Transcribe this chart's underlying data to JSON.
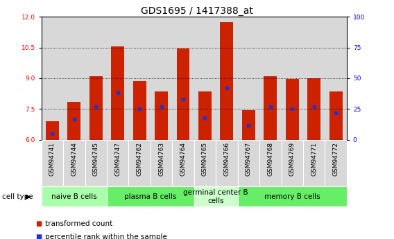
{
  "title": "GDS1695 / 1417388_at",
  "samples": [
    "GSM94741",
    "GSM94744",
    "GSM94745",
    "GSM94747",
    "GSM94762",
    "GSM94763",
    "GSM94764",
    "GSM94765",
    "GSM94766",
    "GSM94767",
    "GSM94768",
    "GSM94769",
    "GSM94771",
    "GSM94772"
  ],
  "transformed_count": [
    6.9,
    7.85,
    9.1,
    10.55,
    8.85,
    8.35,
    10.45,
    8.35,
    11.75,
    7.45,
    9.1,
    8.95,
    9.0,
    8.35
  ],
  "percentile_rank": [
    5,
    17,
    27,
    38,
    25,
    27,
    33,
    18,
    42,
    12,
    27,
    25,
    27,
    22
  ],
  "ylim_left": [
    6,
    12
  ],
  "ylim_right": [
    0,
    100
  ],
  "yticks_left": [
    6,
    7.5,
    9,
    10.5,
    12
  ],
  "yticks_right": [
    0,
    25,
    50,
    75,
    100
  ],
  "bar_color": "#cc2200",
  "dot_color": "#2233cc",
  "sample_bg_color": "#d8d8d8",
  "cell_type_groups": [
    {
      "label": "naive B cells",
      "start": 0,
      "end": 3,
      "color": "#aaffaa"
    },
    {
      "label": "plasma B cells",
      "start": 3,
      "end": 7,
      "color": "#66ee66"
    },
    {
      "label": "germinal center B\ncells",
      "start": 7,
      "end": 9,
      "color": "#ccffcc"
    },
    {
      "label": "memory B cells",
      "start": 9,
      "end": 14,
      "color": "#66ee66"
    }
  ],
  "legend_items": [
    {
      "label": "transformed count",
      "color": "#cc2200"
    },
    {
      "label": "percentile rank within the sample",
      "color": "#2233cc"
    }
  ],
  "title_fontsize": 10,
  "tick_fontsize": 6.5,
  "label_fontsize": 7.5,
  "cell_label_fontsize": 7.5
}
